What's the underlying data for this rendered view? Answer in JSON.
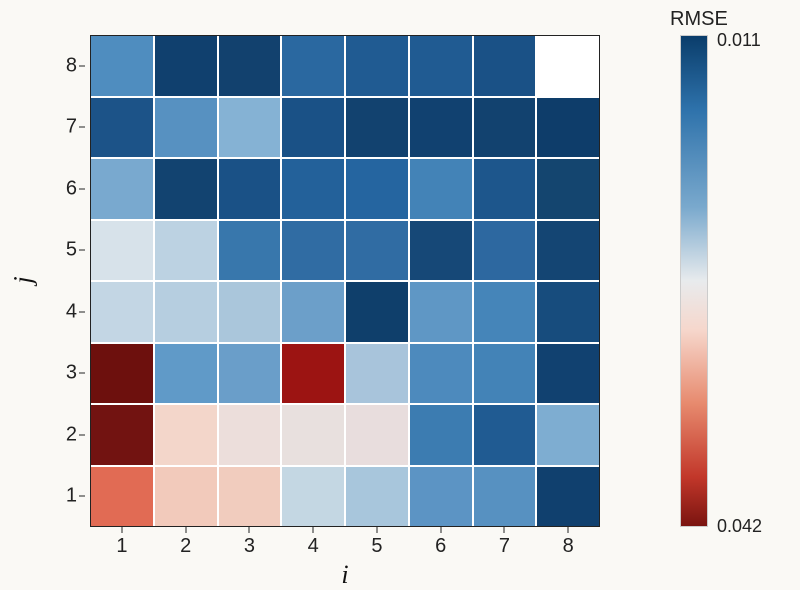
{
  "heatmap": {
    "type": "heatmap",
    "x_label": "i",
    "y_label": "j",
    "x_ticks": [
      "1",
      "2",
      "3",
      "4",
      "5",
      "6",
      "7",
      "8"
    ],
    "y_ticks": [
      "1",
      "2",
      "3",
      "4",
      "5",
      "6",
      "7",
      "8"
    ],
    "tick_fontsize": 20,
    "label_fontsize": 26,
    "label_fontstyle": "italic",
    "background_color": "#faf9f5",
    "cell_border_color": "#ffffff",
    "cbar": {
      "title": "RMSE",
      "min_label": "0.011",
      "max_label": "0.042",
      "gradient_stops": [
        {
          "pct": 0,
          "color": "#0a3d6b"
        },
        {
          "pct": 15,
          "color": "#2e72ab"
        },
        {
          "pct": 35,
          "color": "#7aa9cd"
        },
        {
          "pct": 50,
          "color": "#e8ebed"
        },
        {
          "pct": 60,
          "color": "#f6d7cc"
        },
        {
          "pct": 75,
          "color": "#e78a6e"
        },
        {
          "pct": 90,
          "color": "#c2372a"
        },
        {
          "pct": 100,
          "color": "#7a1410"
        }
      ]
    },
    "rows_top_to_bottom_j": [
      8,
      7,
      6,
      5,
      4,
      3,
      2,
      1
    ],
    "cell_colors": [
      [
        "#4f8dbf",
        "#10406e",
        "#12416e",
        "#2a68a0",
        "#205b92",
        "#205b92",
        "#1a5186",
        "#ffffff"
      ],
      [
        "#1c5388",
        "#5791c1",
        "#85b2d4",
        "#1a5186",
        "#12426f",
        "#114170",
        "#12426f",
        "#0e3d6a"
      ],
      [
        "#79a9cf",
        "#124370",
        "#1a5186",
        "#23619a",
        "#2565a0",
        "#4383b7",
        "#1d568c",
        "#14456f"
      ],
      [
        "#d7e2ea",
        "#bcd2e2",
        "#3877ac",
        "#306ca3",
        "#306ca3",
        "#164877",
        "#2d68a0",
        "#144573"
      ],
      [
        "#c3d6e4",
        "#b6cee0",
        "#aac6db",
        "#6c9fc9",
        "#0f3f6b",
        "#5f97c5",
        "#4585b9",
        "#174c7d"
      ],
      [
        "#6d100d",
        "#609ac8",
        "#6a9ec9",
        "#9c1412",
        "#a8c4db",
        "#4d8abd",
        "#4383b7",
        "#114170"
      ],
      [
        "#721311",
        "#f3d6ca",
        "#ecdedb",
        "#e8e0de",
        "#e8dddd",
        "#3c7cb1",
        "#205b92",
        "#7eadd1"
      ],
      [
        "#e16b54",
        "#f2cabb",
        "#f1ccbe",
        "#c4d7e3",
        "#a8c6dc",
        "#5c94c4",
        "#5791c1",
        "#10406e"
      ]
    ]
  }
}
